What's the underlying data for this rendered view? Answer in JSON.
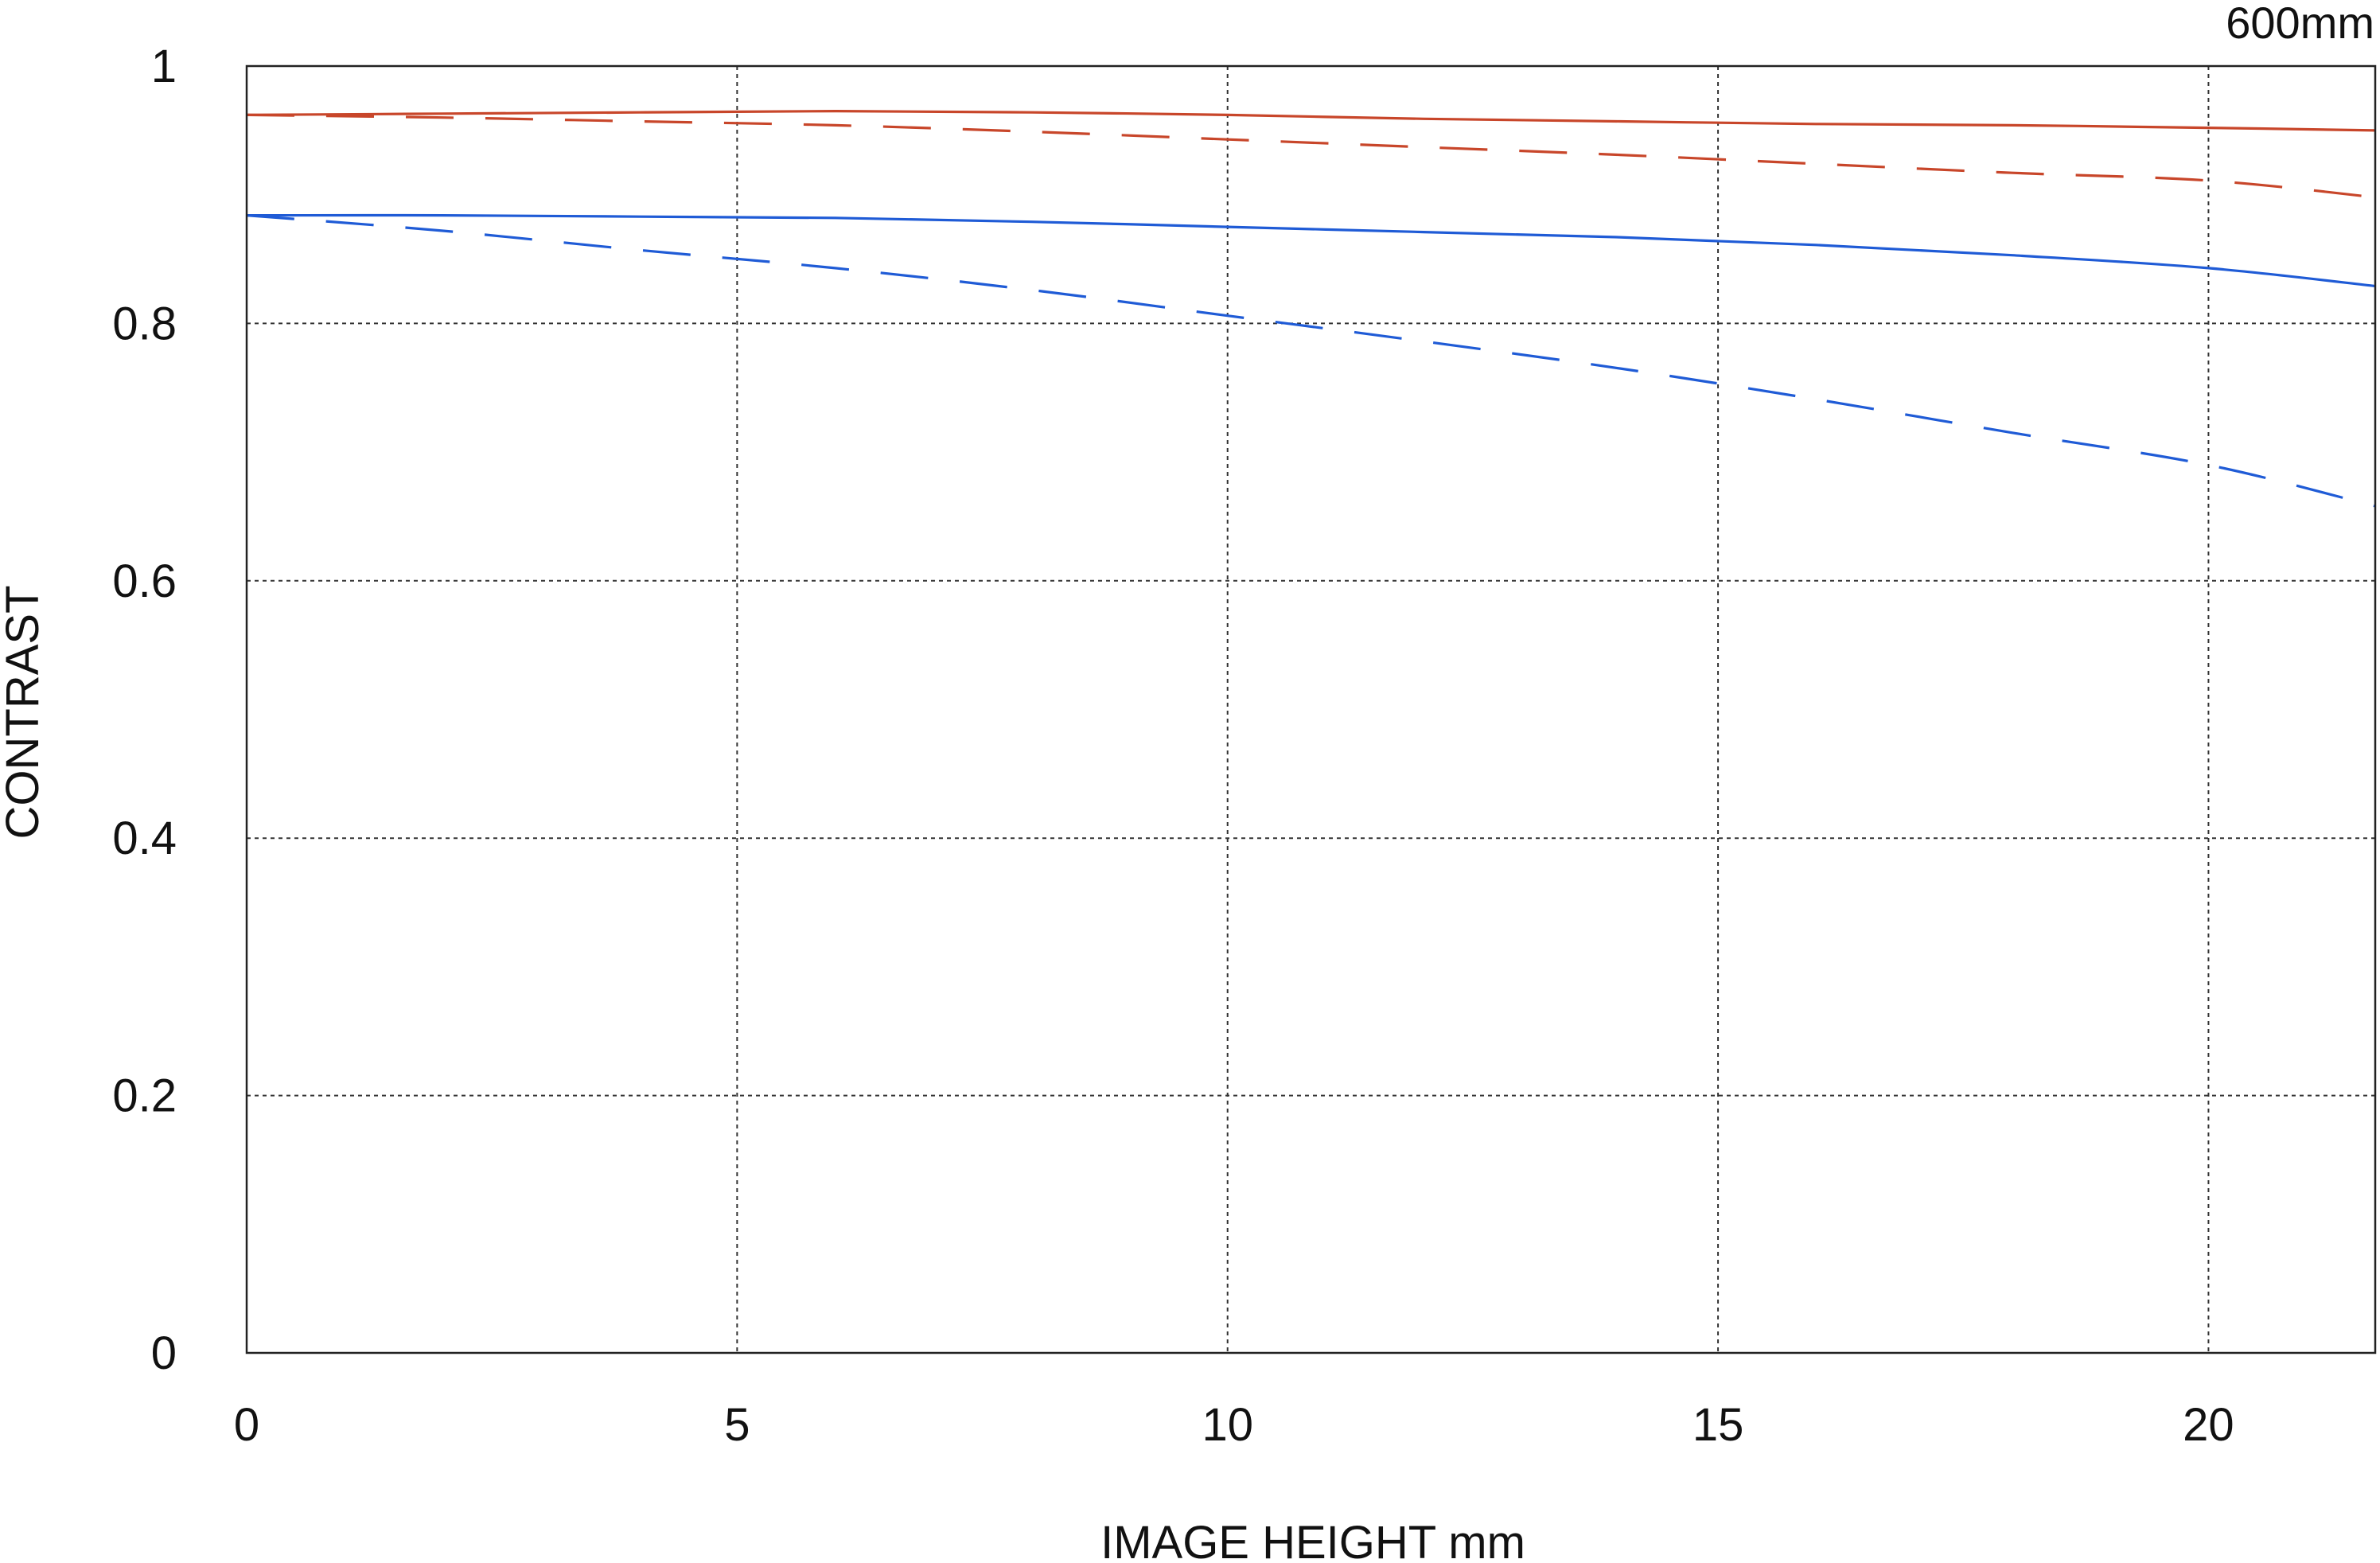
{
  "chart_data": {
    "type": "line",
    "title": "",
    "corner_label": "600mm",
    "xlabel": "IMAGE HEIGHT  mm",
    "ylabel": "CONTRAST",
    "xlim": [
      0,
      21.7
    ],
    "ylim": [
      0,
      1
    ],
    "x_ticks": [
      0,
      5,
      10,
      15,
      20
    ],
    "y_ticks": [
      0,
      0.2,
      0.4,
      0.6,
      0.8,
      1
    ],
    "y_tick_labels": [
      "0",
      "0.2",
      "0.4",
      "0.6",
      "0.8",
      "1"
    ],
    "grid": true,
    "colors": {
      "red": "#c8462a",
      "blue": "#1f5bd6",
      "grid": "#333333"
    },
    "series": [
      {
        "color": "#c8462a",
        "style": "solid",
        "x": [
          0,
          2,
          4,
          6,
          8,
          10,
          12,
          14,
          16,
          18,
          20,
          21.7
        ],
        "y": [
          0.962,
          0.963,
          0.964,
          0.965,
          0.964,
          0.962,
          0.959,
          0.957,
          0.955,
          0.954,
          0.952,
          0.95
        ]
      },
      {
        "color": "#c8462a",
        "style": "dashed",
        "x": [
          0,
          2,
          4,
          6,
          8,
          10,
          12,
          14,
          16,
          18,
          20,
          21.7
        ],
        "y": [
          0.962,
          0.96,
          0.957,
          0.954,
          0.949,
          0.943,
          0.937,
          0.931,
          0.924,
          0.917,
          0.911,
          0.898
        ]
      },
      {
        "color": "#1f5bd6",
        "style": "solid",
        "x": [
          0,
          2,
          4,
          6,
          8,
          10,
          12,
          14,
          16,
          18,
          20,
          21.7
        ],
        "y": [
          0.884,
          0.884,
          0.883,
          0.882,
          0.879,
          0.875,
          0.871,
          0.867,
          0.861,
          0.853,
          0.843,
          0.829
        ]
      },
      {
        "color": "#1f5bd6",
        "style": "dashed",
        "x": [
          0,
          2,
          4,
          6,
          8,
          10,
          12,
          14,
          16,
          18,
          20,
          21.7
        ],
        "y": [
          0.884,
          0.872,
          0.857,
          0.843,
          0.826,
          0.806,
          0.786,
          0.765,
          0.741,
          0.715,
          0.69,
          0.658
        ]
      }
    ]
  }
}
